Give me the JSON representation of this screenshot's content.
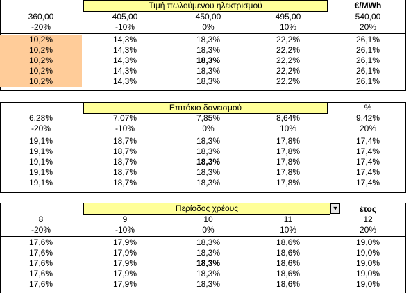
{
  "sections": [
    {
      "title": "Τιμή πωλούμενου ηλεκτρισμού",
      "unit": "€/MWh",
      "headers": [
        "360,00",
        "405,00",
        "450,00",
        "495,00",
        "540,00"
      ],
      "pct": [
        "-20%",
        "-10%",
        "0%",
        "10%",
        "20%"
      ],
      "rows": [
        [
          "10,2%",
          "14,3%",
          "18,3%",
          "22,2%",
          "26,1%"
        ],
        [
          "10,2%",
          "14,3%",
          "18,3%",
          "22,2%",
          "26,1%"
        ],
        [
          "10,2%",
          "14,3%",
          "18,3%",
          "22,2%",
          "26,1%"
        ],
        [
          "10,2%",
          "14,3%",
          "18,3%",
          "22,2%",
          "26,1%"
        ],
        [
          "10,2%",
          "14,3%",
          "18,3%",
          "22,2%",
          "26,1%"
        ]
      ]
    },
    {
      "title": "Επιτόκιο δανεισμού",
      "unit": "%",
      "headers": [
        "6,28%",
        "7,07%",
        "7,85%",
        "8,64%",
        "9,42%"
      ],
      "pct": [
        "-20%",
        "-10%",
        "0%",
        "10%",
        "20%"
      ],
      "rows": [
        [
          "19,1%",
          "18,7%",
          "18,3%",
          "17,8%",
          "17,4%"
        ],
        [
          "19,1%",
          "18,7%",
          "18,3%",
          "17,8%",
          "17,4%"
        ],
        [
          "19,1%",
          "18,7%",
          "18,3%",
          "17,8%",
          "17,4%"
        ],
        [
          "19,1%",
          "18,7%",
          "18,3%",
          "17,8%",
          "17,4%"
        ],
        [
          "19,1%",
          "18,7%",
          "18,3%",
          "17,8%",
          "17,4%"
        ]
      ]
    },
    {
      "title": "Περίοδος χρέους",
      "unit": "έτος",
      "dropdown_glyph": "▼",
      "headers": [
        "8",
        "9",
        "10",
        "11",
        "12"
      ],
      "pct": [
        "-20%",
        "-10%",
        "0%",
        "10%",
        "20%"
      ],
      "rows": [
        [
          "17,6%",
          "17,9%",
          "18,3%",
          "18,6%",
          "19,0%"
        ],
        [
          "17,6%",
          "17,9%",
          "18,3%",
          "18,6%",
          "19,0%"
        ],
        [
          "17,6%",
          "17,9%",
          "18,3%",
          "18,6%",
          "19,0%"
        ],
        [
          "17,6%",
          "17,9%",
          "18,3%",
          "18,6%",
          "19,0%"
        ],
        [
          "17,6%",
          "17,9%",
          "18,3%",
          "18,6%",
          "19,0%"
        ]
      ]
    }
  ],
  "colors": {
    "title_bg": "#ffff99",
    "highlight": "#ffcc99"
  }
}
